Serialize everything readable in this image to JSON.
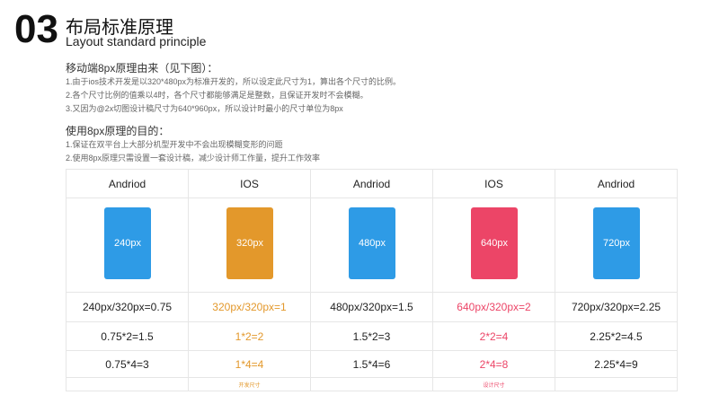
{
  "header": {
    "number": "03",
    "title": "布局标准原理",
    "subtitle": "Layout standard principle"
  },
  "sections": [
    {
      "heading": "移动端8px原理由来（见下图）：",
      "lines": [
        "1.由于ios技术开发是以320*480px为标准开发的，所以设定此尺寸为1，算出各个尺寸的比例。",
        "2.各个尺寸比例的值乘以4时，各个尺寸都能够满足是整数，且保证开发时不会模糊。",
        "3.又因为@2x切图设计稿尺寸为640*960px，所以设计时最小的尺寸单位为8px"
      ]
    },
    {
      "heading": "使用8px原理的目的：",
      "lines": [
        "1.保证在双平台上大部分机型开发中不会出现模糊变形的问题",
        "2.使用8px原理只需设置一套设计稿，减少设计师工作量，提升工作效率"
      ]
    }
  ],
  "table": {
    "columns": [
      {
        "platform": "Andriod",
        "size": "240px",
        "ratio": "240px/320px=0.75",
        "x2": "0.75*2=1.5",
        "x4": "0.75*4=3",
        "phone_color": "#2e9be6",
        "text_color": "#222222"
      },
      {
        "platform": "IOS",
        "size": "320px",
        "ratio": "320px/320px=1",
        "x2": "1*2=2",
        "x4": "1*4=4",
        "note": "开发尺寸",
        "phone_color": "#e3982b",
        "text_color": "#e3982b"
      },
      {
        "platform": "Andriod",
        "size": "480px",
        "ratio": "480px/320px=1.5",
        "x2": "1.5*2=3",
        "x4": "1.5*4=6",
        "phone_color": "#2e9be6",
        "text_color": "#222222"
      },
      {
        "platform": "IOS",
        "size": "640px",
        "ratio": "640px/320px=2",
        "x2": "2*2=4",
        "x4": "2*4=8",
        "note": "设计尺寸",
        "phone_color": "#ec4567",
        "text_color": "#ec4567"
      },
      {
        "platform": "Andriod",
        "size": "720px",
        "ratio": "720px/320px=2.25",
        "x2": "2.25*2=4.5",
        "x4": "2.25*4=9",
        "phone_color": "#2e9be6",
        "text_color": "#222222"
      }
    ]
  }
}
